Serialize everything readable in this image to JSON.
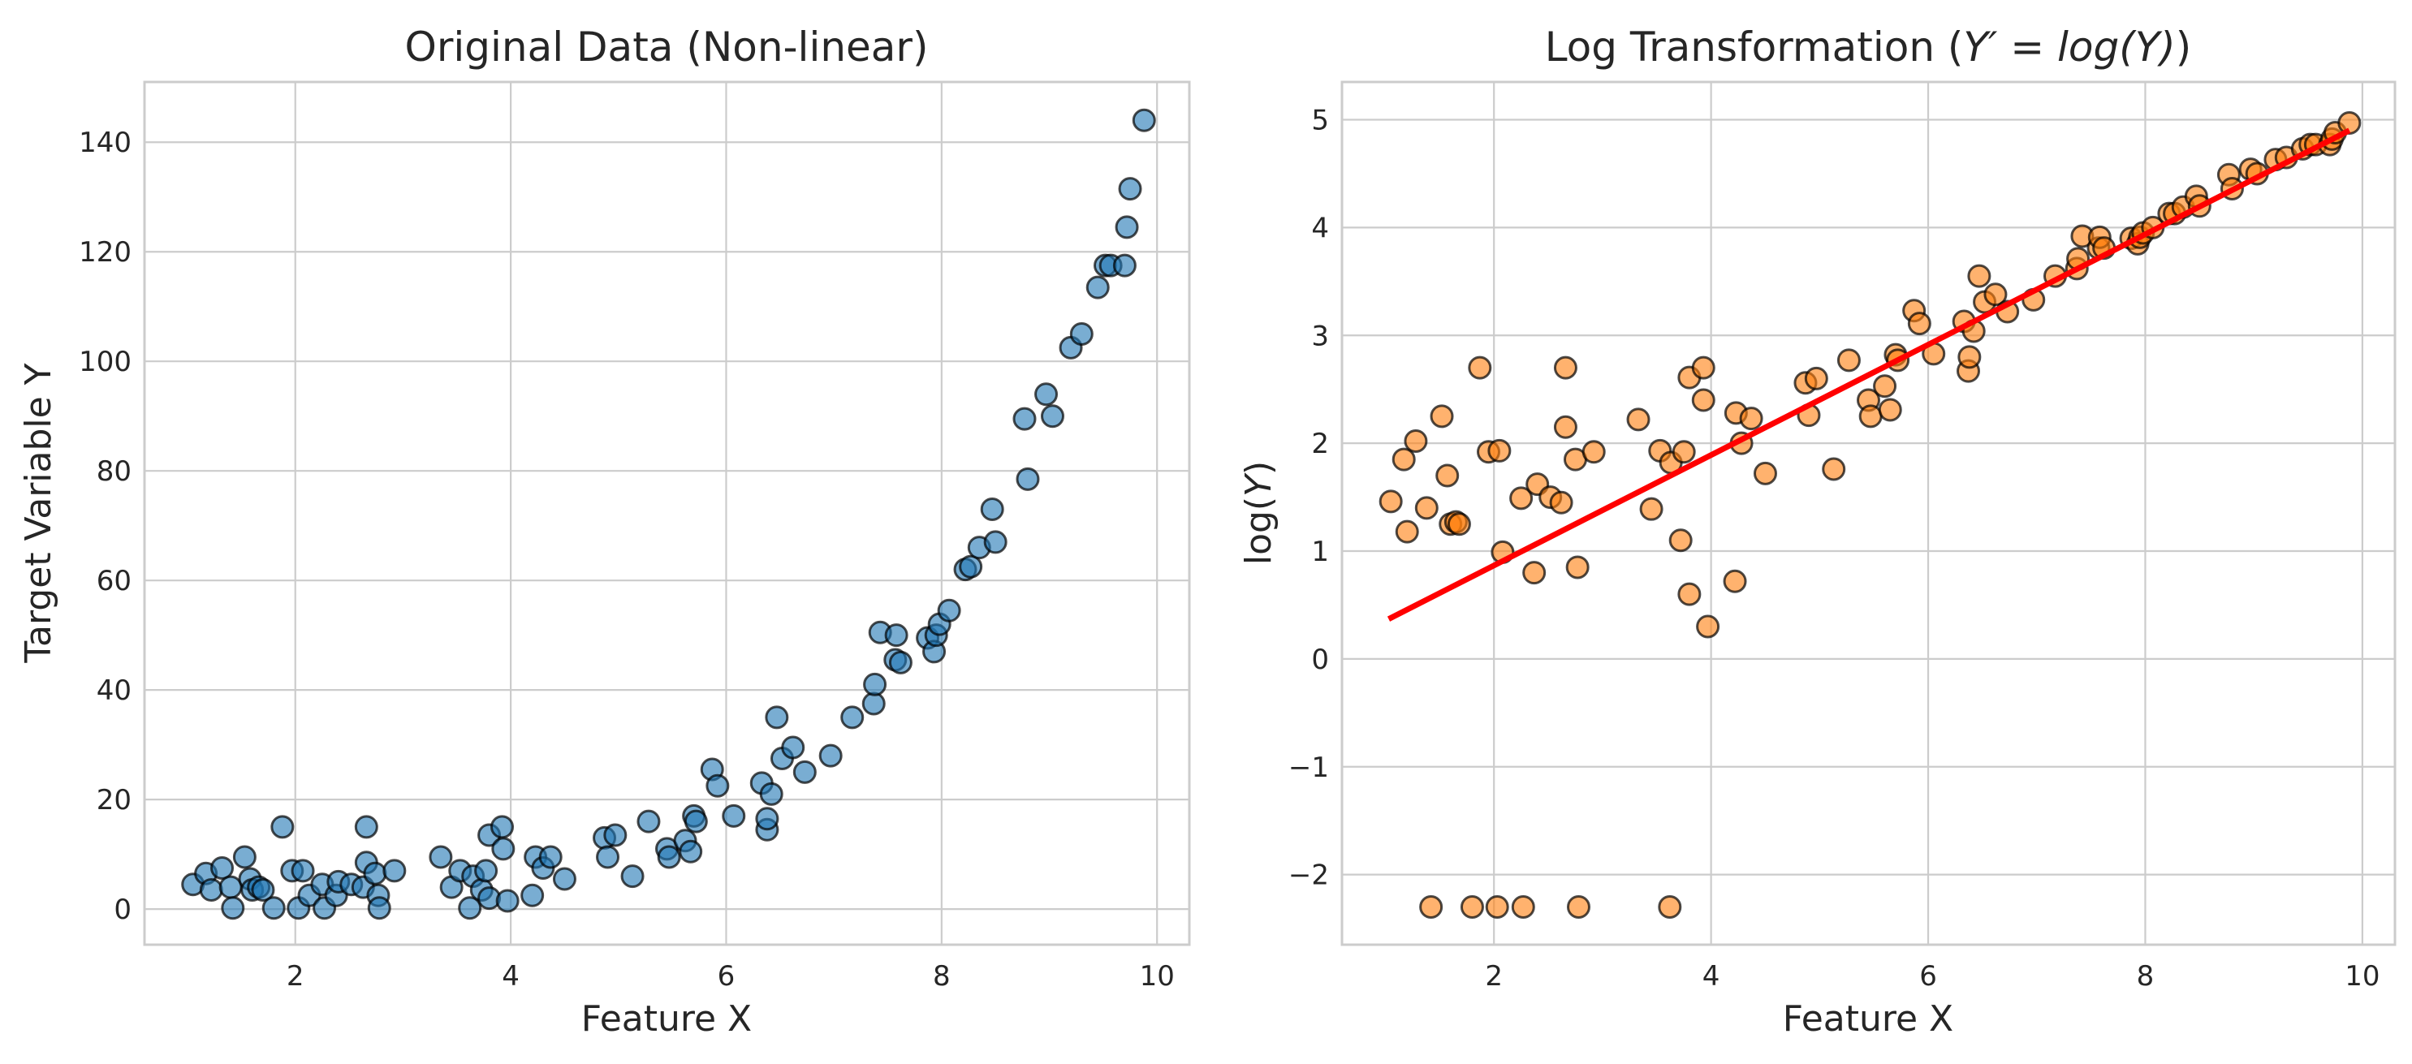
{
  "chart_data": [
    {
      "type": "scatter",
      "title": "Original Data (Non-linear)",
      "xlabel": "Feature X",
      "ylabel": "Target Variable Y",
      "xlim": [
        0.6,
        10.3
      ],
      "ylim": [
        -6.5,
        151
      ],
      "xticks": [
        2,
        4,
        6,
        8,
        10
      ],
      "yticks": [
        0,
        20,
        40,
        60,
        80,
        100,
        120,
        140
      ],
      "grid": true,
      "marker_color": "#1f77b4",
      "series": [
        {
          "points": [
            [
              1.05,
              4.5
            ],
            [
              1.17,
              6.5
            ],
            [
              1.22,
              3.5
            ],
            [
              1.32,
              7.5
            ],
            [
              1.4,
              4.0
            ],
            [
              1.42,
              0.2
            ],
            [
              1.53,
              9.5
            ],
            [
              1.58,
              5.5
            ],
            [
              1.6,
              3.5
            ],
            [
              1.66,
              4.0
            ],
            [
              1.7,
              3.5
            ],
            [
              1.8,
              0.2
            ],
            [
              1.88,
              15.0
            ],
            [
              1.97,
              7.0
            ],
            [
              2.03,
              0.2
            ],
            [
              2.07,
              7.0
            ],
            [
              2.13,
              2.5
            ],
            [
              2.25,
              4.5
            ],
            [
              2.27,
              0.2
            ],
            [
              2.38,
              2.5
            ],
            [
              2.4,
              5.0
            ],
            [
              2.52,
              4.5
            ],
            [
              2.63,
              4.0
            ],
            [
              2.66,
              15.0
            ],
            [
              2.66,
              8.5
            ],
            [
              2.74,
              6.5
            ],
            [
              2.77,
              2.5
            ],
            [
              2.78,
              0.2
            ],
            [
              2.92,
              7.0
            ],
            [
              3.35,
              9.5
            ],
            [
              3.45,
              4.0
            ],
            [
              3.53,
              7.0
            ],
            [
              3.62,
              0.2
            ],
            [
              3.65,
              6.0
            ],
            [
              3.73,
              3.5
            ],
            [
              3.77,
              7.0
            ],
            [
              3.8,
              2.0
            ],
            [
              3.8,
              13.5
            ],
            [
              3.92,
              15.0
            ],
            [
              3.93,
              11.0
            ],
            [
              3.97,
              1.5
            ],
            [
              4.2,
              2.5
            ],
            [
              4.23,
              9.5
            ],
            [
              4.3,
              7.5
            ],
            [
              4.37,
              9.5
            ],
            [
              4.5,
              5.5
            ],
            [
              4.87,
              13.0
            ],
            [
              4.9,
              9.5
            ],
            [
              4.97,
              13.5
            ],
            [
              5.13,
              6.0
            ],
            [
              5.28,
              16.0
            ],
            [
              5.45,
              11.0
            ],
            [
              5.47,
              9.5
            ],
            [
              5.62,
              12.5
            ],
            [
              5.67,
              10.5
            ],
            [
              5.7,
              17.0
            ],
            [
              5.72,
              16.0
            ],
            [
              5.87,
              25.5
            ],
            [
              5.92,
              22.5
            ],
            [
              6.07,
              17.0
            ],
            [
              6.33,
              23.0
            ],
            [
              6.38,
              14.5
            ],
            [
              6.38,
              16.5
            ],
            [
              6.42,
              21.0
            ],
            [
              6.47,
              35.0
            ],
            [
              6.52,
              27.5
            ],
            [
              6.62,
              29.5
            ],
            [
              6.73,
              25.0
            ],
            [
              6.97,
              28.0
            ],
            [
              7.17,
              35.0
            ],
            [
              7.37,
              37.5
            ],
            [
              7.38,
              41.0
            ],
            [
              7.43,
              50.5
            ],
            [
              7.57,
              45.5
            ],
            [
              7.58,
              50.0
            ],
            [
              7.62,
              45.0
            ],
            [
              7.87,
              49.5
            ],
            [
              7.93,
              47.0
            ],
            [
              7.95,
              50.0
            ],
            [
              7.98,
              52.0
            ],
            [
              8.07,
              54.5
            ],
            [
              8.22,
              62.0
            ],
            [
              8.27,
              62.5
            ],
            [
              8.35,
              66.0
            ],
            [
              8.47,
              73.0
            ],
            [
              8.5,
              67.0
            ],
            [
              8.77,
              89.5
            ],
            [
              8.8,
              78.5
            ],
            [
              8.97,
              94.0
            ],
            [
              9.03,
              90.0
            ],
            [
              9.2,
              102.5
            ],
            [
              9.3,
              105.0
            ],
            [
              9.45,
              113.5
            ],
            [
              9.52,
              117.5
            ],
            [
              9.57,
              117.5
            ],
            [
              9.7,
              117.5
            ],
            [
              9.72,
              124.5
            ],
            [
              9.75,
              131.5
            ],
            [
              9.88,
              144.0
            ]
          ]
        }
      ]
    },
    {
      "type": "scatter",
      "title": "Log Transformation (",
      "title_math": "Y′ = log(Y)",
      "title_close": ")",
      "xlabel": "Feature X",
      "ylabel": "log(",
      "ylabel_var": "Y",
      "ylabel_close": ")",
      "xlim": [
        0.6,
        10.3
      ],
      "ylim": [
        -2.65,
        5.35
      ],
      "xticks": [
        2,
        4,
        6,
        8,
        10
      ],
      "yticks": [
        -2,
        -1,
        0,
        1,
        2,
        3,
        4,
        5
      ],
      "ytick_labels": [
        "−2",
        "−1",
        "0",
        "1",
        "2",
        "3",
        "4",
        "5"
      ],
      "grid": true,
      "marker_color": "#ff7f0e",
      "line_color": "#ff0000",
      "series": [
        {
          "points": [
            [
              1.05,
              1.46
            ],
            [
              1.17,
              1.85
            ],
            [
              1.2,
              1.18
            ],
            [
              1.28,
              2.02
            ],
            [
              1.38,
              1.4
            ],
            [
              1.42,
              -2.3
            ],
            [
              1.52,
              2.25
            ],
            [
              1.57,
              1.7
            ],
            [
              1.6,
              1.25
            ],
            [
              1.65,
              1.27
            ],
            [
              1.68,
              1.25
            ],
            [
              1.8,
              -2.3
            ],
            [
              1.87,
              2.7
            ],
            [
              1.95,
              1.92
            ],
            [
              2.03,
              -2.3
            ],
            [
              2.05,
              1.93
            ],
            [
              2.08,
              0.99
            ],
            [
              2.25,
              1.49
            ],
            [
              2.27,
              -2.3
            ],
            [
              2.37,
              0.8
            ],
            [
              2.4,
              1.62
            ],
            [
              2.52,
              1.5
            ],
            [
              2.62,
              1.45
            ],
            [
              2.66,
              2.7
            ],
            [
              2.66,
              2.15
            ],
            [
              2.75,
              1.85
            ],
            [
              2.77,
              0.85
            ],
            [
              2.78,
              -2.3
            ],
            [
              2.92,
              1.92
            ],
            [
              3.33,
              2.22
            ],
            [
              3.45,
              1.39
            ],
            [
              3.53,
              1.93
            ],
            [
              3.62,
              -2.3
            ],
            [
              3.63,
              1.82
            ],
            [
              3.72,
              1.1
            ],
            [
              3.75,
              1.92
            ],
            [
              3.8,
              0.6
            ],
            [
              3.8,
              2.61
            ],
            [
              3.93,
              2.7
            ],
            [
              3.93,
              2.4
            ],
            [
              3.97,
              0.3
            ],
            [
              4.22,
              0.72
            ],
            [
              4.23,
              2.28
            ],
            [
              4.28,
              2.0
            ],
            [
              4.37,
              2.23
            ],
            [
              4.5,
              1.72
            ],
            [
              4.87,
              2.56
            ],
            [
              4.9,
              2.26
            ],
            [
              4.97,
              2.6
            ],
            [
              5.13,
              1.76
            ],
            [
              5.27,
              2.77
            ],
            [
              5.45,
              2.4
            ],
            [
              5.47,
              2.25
            ],
            [
              5.6,
              2.53
            ],
            [
              5.65,
              2.31
            ],
            [
              5.7,
              2.82
            ],
            [
              5.72,
              2.77
            ],
            [
              5.87,
              3.23
            ],
            [
              5.92,
              3.11
            ],
            [
              6.05,
              2.83
            ],
            [
              6.33,
              3.13
            ],
            [
              6.37,
              2.67
            ],
            [
              6.38,
              2.8
            ],
            [
              6.42,
              3.04
            ],
            [
              6.47,
              3.55
            ],
            [
              6.52,
              3.31
            ],
            [
              6.62,
              3.38
            ],
            [
              6.73,
              3.22
            ],
            [
              6.97,
              3.33
            ],
            [
              7.17,
              3.55
            ],
            [
              7.37,
              3.62
            ],
            [
              7.38,
              3.71
            ],
            [
              7.42,
              3.92
            ],
            [
              7.57,
              3.81
            ],
            [
              7.58,
              3.91
            ],
            [
              7.62,
              3.81
            ],
            [
              7.87,
              3.9
            ],
            [
              7.93,
              3.85
            ],
            [
              7.95,
              3.91
            ],
            [
              7.98,
              3.95
            ],
            [
              8.07,
              4.0
            ],
            [
              8.22,
              4.13
            ],
            [
              8.27,
              4.13
            ],
            [
              8.35,
              4.19
            ],
            [
              8.47,
              4.29
            ],
            [
              8.5,
              4.2
            ],
            [
              8.77,
              4.49
            ],
            [
              8.8,
              4.36
            ],
            [
              8.97,
              4.54
            ],
            [
              9.03,
              4.5
            ],
            [
              9.2,
              4.63
            ],
            [
              9.3,
              4.65
            ],
            [
              9.45,
              4.73
            ],
            [
              9.52,
              4.77
            ],
            [
              9.57,
              4.77
            ],
            [
              9.7,
              4.77
            ],
            [
              9.72,
              4.82
            ],
            [
              9.75,
              4.88
            ],
            [
              9.88,
              4.97
            ]
          ]
        },
        {
          "type": "line",
          "x": [
            1.03,
            9.88
          ],
          "y": [
            0.37,
            4.9
          ]
        }
      ]
    }
  ]
}
